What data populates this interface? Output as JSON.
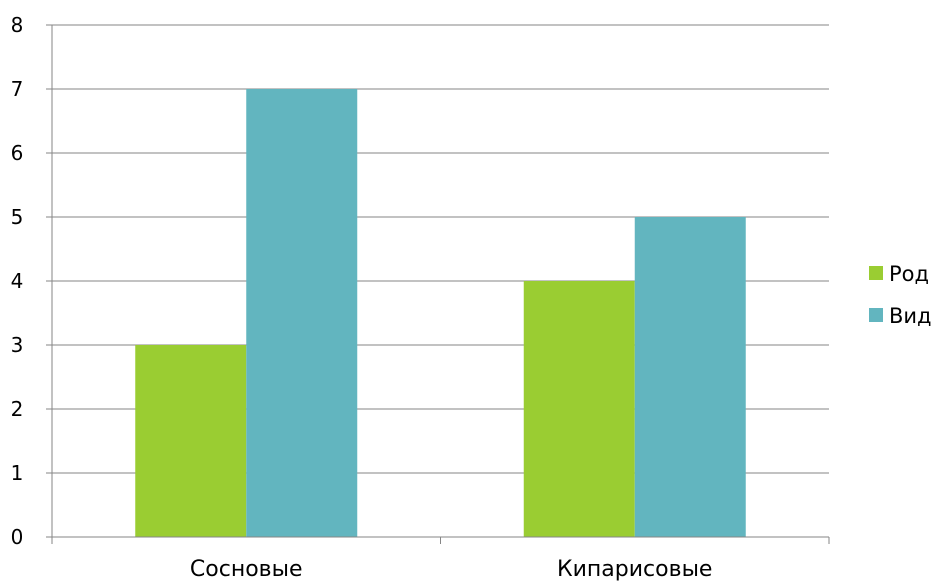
{
  "chart_data": {
    "type": "bar",
    "title": "",
    "xlabel": "",
    "ylabel": "",
    "categories": [
      "Сосновые",
      "Кипарисовые"
    ],
    "series": [
      {
        "name": "Род",
        "values": [
          3,
          4
        ],
        "color": "#9ACD32"
      },
      {
        "name": "Вид",
        "values": [
          7,
          5
        ],
        "color": "#62B5BF"
      }
    ],
    "ylim": [
      0,
      8
    ],
    "yticks": [
      "0",
      "1",
      "2",
      "3",
      "4",
      "5",
      "6",
      "7",
      "8"
    ],
    "grid": true,
    "legend": "right"
  },
  "colors": {
    "gridline": "#868686",
    "axis": "#868686"
  }
}
